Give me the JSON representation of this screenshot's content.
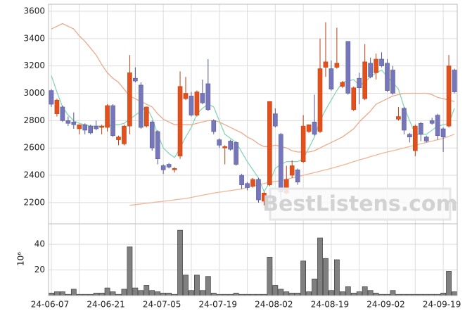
{
  "chart_data": [
    {
      "type": "candlestick",
      "watermark": "BestListens.com",
      "open": [
        3020,
        2850,
        2900,
        2800,
        2790,
        2740,
        2770,
        2760,
        2760,
        2750,
        2750,
        2910,
        2660,
        2630,
        2760,
        3110,
        3060,
        2760,
        2790,
        2720,
        2470,
        2480,
        2440,
        2540,
        2960,
        2980,
        2840,
        3000,
        3070,
        2800,
        2660,
        2600,
        2650,
        2640,
        2400,
        2340,
        2320,
        2370,
        2210,
        2330,
        2850,
        2700,
        2270,
        2400,
        2440,
        2500,
        2720,
        2790,
        2720,
        3190,
        3180,
        3190,
        3050,
        3380,
        2880,
        3110,
        2960,
        3220,
        3150,
        3250,
        3220,
        3170,
        2810,
        2890,
        2700,
        2580,
        2780,
        2680,
        2800,
        2840,
        2740,
        2760,
        3170
      ],
      "high": [
        3030,
        2960,
        2910,
        2830,
        2860,
        2770,
        2780,
        2770,
        2800,
        2770,
        2920,
        2920,
        2690,
        2770,
        3280,
        3190,
        3080,
        2900,
        2800,
        2730,
        2480,
        2490,
        2460,
        3160,
        3120,
        3010,
        3020,
        3100,
        3250,
        2810,
        2670,
        2620,
        2660,
        2650,
        2410,
        2350,
        2380,
        2380,
        2280,
        2940,
        2890,
        2710,
        2470,
        2510,
        2450,
        2840,
        2770,
        2990,
        3400,
        3520,
        3240,
        3480,
        3090,
        3380,
        3050,
        3150,
        3360,
        3260,
        3290,
        3300,
        3250,
        3200,
        2900,
        2900,
        2710,
        2770,
        2790,
        2690,
        2820,
        2850,
        2750,
        3280,
        3180
      ],
      "low": [
        2900,
        2830,
        2790,
        2760,
        2740,
        2700,
        2700,
        2700,
        2730,
        2700,
        2720,
        2680,
        2620,
        2620,
        2700,
        3080,
        2740,
        2750,
        2580,
        2480,
        2410,
        2450,
        2420,
        2520,
        2950,
        2830,
        2830,
        2920,
        2870,
        2700,
        2600,
        2480,
        2580,
        2470,
        2300,
        2290,
        2310,
        2200,
        2180,
        2320,
        2750,
        2220,
        2260,
        2380,
        2330,
        2490,
        2710,
        2690,
        2710,
        3120,
        3020,
        3180,
        3040,
        2990,
        2870,
        2920,
        2950,
        3110,
        3100,
        3190,
        3010,
        2990,
        2800,
        2700,
        2640,
        2540,
        2650,
        2640,
        2770,
        2660,
        2570,
        2750,
        3000
      ],
      "close": [
        2920,
        2950,
        2800,
        2780,
        2770,
        2770,
        2730,
        2710,
        2740,
        2760,
        2910,
        2690,
        2680,
        2760,
        3150,
        3090,
        2750,
        2900,
        2600,
        2520,
        2440,
        2460,
        2450,
        3050,
        3000,
        2840,
        3010,
        2930,
        2880,
        2720,
        2620,
        2610,
        2590,
        2480,
        2330,
        2310,
        2370,
        2220,
        2270,
        2940,
        2760,
        2280,
        2370,
        2470,
        2350,
        2760,
        2770,
        2700,
        3180,
        3230,
        3030,
        3220,
        3080,
        3000,
        3040,
        3040,
        3230,
        3120,
        3250,
        3200,
        3020,
        3000,
        2830,
        2730,
        2680,
        2760,
        2700,
        2650,
        2780,
        2690,
        2680,
        3200,
        3010
      ],
      "up_color": "#e2501c",
      "down_color": "#7676ba",
      "series": [
        {
          "color": "#86d6b6",
          "values": [
            3130,
            3010,
            2900,
            2840,
            2800,
            2780,
            2770,
            2760,
            2760,
            2760,
            2760,
            2770,
            2770,
            2780,
            2810,
            2840,
            2870,
            2900,
            2820,
            2700,
            2600,
            2560,
            2530,
            2600,
            2680,
            2750,
            2850,
            2890,
            2920,
            2900,
            2800,
            2700,
            2670,
            2640,
            2570,
            2500,
            2440,
            2380,
            2280,
            2350,
            2450,
            2480,
            2500,
            2500,
            2500,
            2520,
            2600,
            2680,
            2800,
            2880,
            2950,
            3020,
            3080,
            3090,
            3100,
            3060,
            3080,
            3120,
            3150,
            3170,
            3120,
            3080,
            3030,
            2900,
            2800,
            2700,
            2700,
            2700,
            2730,
            2760,
            2770,
            2780,
            2890
          ]
        },
        {
          "color": "#eca98b",
          "values": [
            3470,
            3490,
            3510,
            3490,
            3470,
            3420,
            3380,
            3330,
            3280,
            3210,
            3150,
            3110,
            3080,
            3030,
            2980,
            2960,
            2940,
            2920,
            2900,
            2850,
            2810,
            2790,
            2770,
            2770,
            2770,
            2770,
            2780,
            2790,
            2800,
            2800,
            2790,
            2770,
            2750,
            2730,
            2710,
            2680,
            2660,
            2630,
            2610,
            2610,
            2620,
            2610,
            2600,
            2580,
            2570,
            2570,
            2570,
            2580,
            2600,
            2620,
            2640,
            2660,
            2680,
            2710,
            2740,
            2790,
            2830,
            2870,
            2920,
            2940,
            2960,
            2980,
            2990,
            3000,
            3000,
            3000,
            3000,
            3000,
            2990,
            2970,
            2960,
            2950,
            2940
          ]
        },
        {
          "color": "#f0b596",
          "values": [
            null,
            null,
            null,
            null,
            null,
            null,
            null,
            null,
            null,
            null,
            null,
            null,
            null,
            null,
            2180,
            2185,
            2190,
            2195,
            2200,
            2205,
            2210,
            2215,
            2220,
            2225,
            2230,
            2238,
            2246,
            2254,
            2262,
            2270,
            2276,
            2282,
            2288,
            2294,
            2300,
            2310,
            2320,
            2330,
            2340,
            2350,
            2355,
            2360,
            2370,
            2380,
            2390,
            2400,
            2410,
            2420,
            2430,
            2440,
            2450,
            2462,
            2474,
            2486,
            2500,
            2512,
            2524,
            2536,
            2548,
            2560,
            2570,
            2580,
            2590,
            2600,
            2610,
            2620,
            2630,
            2640,
            2650,
            2660,
            2670,
            2685,
            2700
          ]
        }
      ],
      "ylim": [
        2045,
        3600
      ],
      "yticks": [
        2200,
        2400,
        2600,
        2800,
        3000,
        3200,
        3400,
        3600
      ],
      "grid": true
    },
    {
      "type": "bar",
      "ylabel": "10⁶",
      "categories": [
        "24-06-07",
        null,
        null,
        null,
        null,
        null,
        null,
        null,
        null,
        null,
        "24-06-21",
        null,
        null,
        null,
        null,
        null,
        null,
        null,
        null,
        null,
        "24-07-05",
        null,
        null,
        null,
        null,
        null,
        null,
        null,
        null,
        null,
        "24-07-19",
        null,
        null,
        null,
        null,
        null,
        null,
        null,
        null,
        null,
        "24-08-02",
        null,
        null,
        null,
        null,
        null,
        null,
        null,
        null,
        null,
        "24-08-19",
        null,
        null,
        null,
        null,
        null,
        null,
        null,
        null,
        null,
        "24-09-02",
        null,
        null,
        null,
        null,
        null,
        null,
        null,
        null,
        null,
        "24-09-19",
        null,
        null
      ],
      "values": [
        2,
        3,
        3,
        1,
        5,
        1,
        1,
        1,
        2,
        2,
        6,
        3,
        1,
        5,
        38,
        6,
        4,
        8,
        4,
        3,
        2,
        2,
        1,
        51,
        16,
        4,
        16,
        4,
        15,
        2,
        1,
        1,
        1,
        2,
        1,
        1,
        1,
        1,
        1,
        30,
        8,
        5,
        3,
        2,
        2,
        27,
        3,
        13,
        45,
        29,
        4,
        28,
        3,
        7,
        2,
        3,
        7,
        4,
        2,
        1,
        1,
        4,
        1,
        1,
        1,
        1,
        1,
        1,
        1,
        1,
        2,
        19,
        3
      ],
      "color": "#808080",
      "ylim": [
        0,
        56
      ],
      "yticks": [
        20,
        40
      ],
      "grid": true
    }
  ]
}
